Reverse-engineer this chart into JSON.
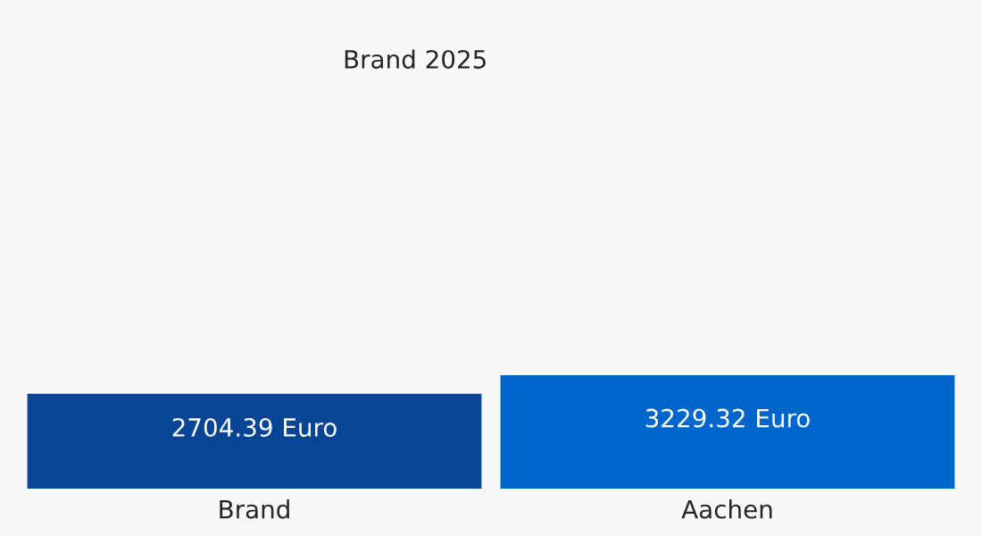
{
  "chart_data": {
    "type": "bar",
    "title": "Brand 2025",
    "categories": [
      "Brand",
      "Aachen"
    ],
    "values": [
      2704.39,
      3229.32
    ],
    "colors": [
      "#084594",
      "#0066cc"
    ],
    "value_labels": [
      "2704.39 Euro",
      "3229.32 Euro"
    ],
    "relative": false,
    "grid": false,
    "legend": false
  }
}
